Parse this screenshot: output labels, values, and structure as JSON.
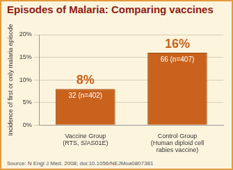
{
  "chart_data": {
    "type": "bar",
    "title": "Episodes of Malaria: Comparing vaccines",
    "categories": [
      "Vaccine Group\n(RTS, S/AS01E)",
      "Control Group\n(Human diploid cell\nrabies vaccine)"
    ],
    "values": [
      8,
      16
    ],
    "value_labels": [
      "8%",
      "16%"
    ],
    "data_labels": true,
    "annotations": [
      "32 (n=402)",
      "66 (n=407)"
    ],
    "color": "#c8621c",
    "y_label": "Incidence of first or only malaria episode",
    "ylim": [
      0,
      20
    ],
    "yticks": [
      {
        "value": 0,
        "label": "0%"
      },
      {
        "value": 5,
        "label": "5%"
      },
      {
        "value": 10,
        "label": "10%"
      },
      {
        "value": 15,
        "label": "15%"
      },
      {
        "value": 20,
        "label": "20%"
      }
    ],
    "grid": true,
    "source": "Source: N Engl J Med. 2008; doi:10.1056/NEJMoa0807381"
  }
}
